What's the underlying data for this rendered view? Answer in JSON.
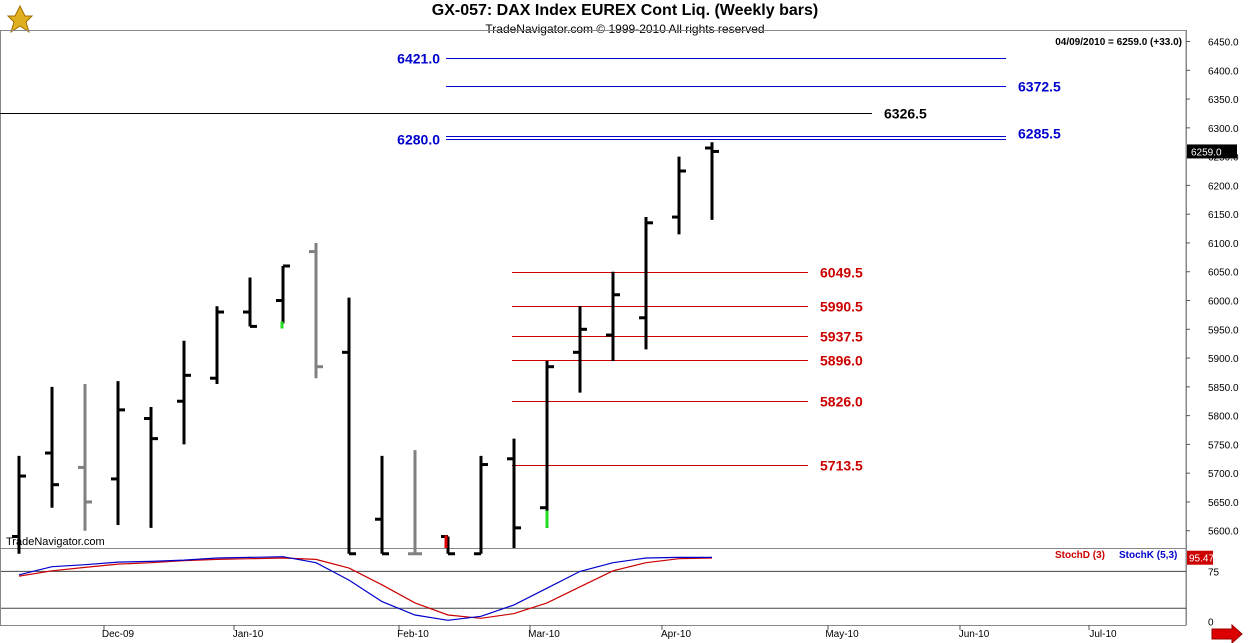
{
  "header": {
    "title": "GX-057:  DAX Index EUREX Cont Liq.  (Weekly bars)",
    "subtitle": "TradeNavigator.com © 1999-2010 All rights reserved",
    "quote": "04/09/2010 = 6259.0 (+33.0)",
    "watermark": "TradeNavigator.com"
  },
  "colors": {
    "up": "#000000",
    "down": "#808080",
    "level_blue": "#0000cc",
    "level_red": "#cc0000",
    "level_black": "#000000",
    "stochD": "#cc0000",
    "stochK": "#0000cc",
    "last_price_bg": "#000000",
    "stoch_value_bg": "#cc0000"
  },
  "chart_data": [
    {
      "type": "ohlc",
      "title": "DAX Index EUREX Cont Liq. (Weekly bars)",
      "ylim": [
        5570,
        6470
      ],
      "y_ticks": [
        5600,
        5650,
        5700,
        5750,
        5800,
        5850,
        5900,
        5950,
        6000,
        6050,
        6100,
        6150,
        6200,
        6250,
        6300,
        6350,
        6400,
        6450
      ],
      "y_tick_labels": [
        "5600.0",
        "5650.0",
        "5700.0",
        "5750.0",
        "5800.0",
        "5850.0",
        "5900.0",
        "5950.0",
        "6000.0",
        "6050.0",
        "6100.0",
        "6150.0",
        "6200.0",
        "6250.0",
        "6300.0",
        "6350.0",
        "6400.0",
        "6450.0"
      ],
      "x_labels": [
        "Dec-09",
        "Jan-10",
        "Feb-10",
        "Mar-10",
        "Apr-10",
        "May-10",
        "Jun-10",
        "Jul-10"
      ],
      "last_price": "6259.0",
      "bars": [
        {
          "o": 5590,
          "h": 5730,
          "l": 5560,
          "c": 5695,
          "color": "up"
        },
        {
          "o": 5735,
          "h": 5850,
          "l": 5640,
          "c": 5680,
          "color": "up"
        },
        {
          "o": 5710,
          "h": 5855,
          "l": 5600,
          "c": 5650,
          "color": "down"
        },
        {
          "o": 5690,
          "h": 5860,
          "l": 5610,
          "c": 5810,
          "color": "up"
        },
        {
          "o": 5795,
          "h": 5815,
          "l": 5605,
          "c": 5760,
          "color": "up"
        },
        {
          "o": 5825,
          "h": 5930,
          "l": 5750,
          "c": 5870,
          "color": "up"
        },
        {
          "o": 5865,
          "h": 5990,
          "l": 5855,
          "c": 5980,
          "color": "up"
        },
        {
          "o": 5980,
          "h": 6040,
          "l": 5955,
          "c": 5955,
          "color": "up"
        },
        {
          "o": 6000,
          "h": 6060,
          "l": 5960,
          "c": 6060,
          "color": "up"
        },
        {
          "o": 6085,
          "h": 6100,
          "l": 5865,
          "c": 5885,
          "color": "down"
        },
        {
          "o": 5910,
          "h": 6005,
          "l": 5560,
          "c": 5560,
          "color": "up"
        },
        {
          "o": 5620,
          "h": 5730,
          "l": 5560,
          "c": 5560,
          "color": "up"
        },
        {
          "o": 5560,
          "h": 5740,
          "l": 5560,
          "c": 5560,
          "color": "down"
        },
        {
          "o": 5590,
          "h": 5590,
          "l": 5560,
          "c": 5560,
          "color": "up"
        },
        {
          "o": 5560,
          "h": 5730,
          "l": 5560,
          "c": 5715,
          "color": "up"
        },
        {
          "o": 5725,
          "h": 5760,
          "l": 5570,
          "c": 5605,
          "color": "up"
        },
        {
          "o": 5640,
          "h": 5895,
          "l": 5605,
          "c": 5885,
          "color": "up"
        },
        {
          "o": 5910,
          "h": 5990,
          "l": 5840,
          "c": 5950,
          "color": "up"
        },
        {
          "o": 5940,
          "h": 6050,
          "l": 5895,
          "c": 6010,
          "color": "up"
        },
        {
          "o": 5970,
          "h": 6145,
          "l": 5915,
          "c": 6135,
          "color": "up"
        },
        {
          "o": 6145,
          "h": 6250,
          "l": 6115,
          "c": 6225,
          "color": "up"
        },
        {
          "o": 6265,
          "h": 6275,
          "l": 6140,
          "c": 6259,
          "color": "up"
        }
      ],
      "levels": [
        {
          "value": 6421.0,
          "label": "6421.0",
          "color": "level_blue",
          "label_side": "left"
        },
        {
          "value": 6372.5,
          "label": "6372.5",
          "color": "level_blue",
          "label_side": "right"
        },
        {
          "value": 6326.5,
          "label": "6326.5",
          "color": "level_black",
          "label_side": "right"
        },
        {
          "value": 6285.5,
          "label": "6285.5",
          "color": "level_blue",
          "label_side": "right"
        },
        {
          "value": 6280.0,
          "label": "6280.0",
          "color": "level_blue",
          "label_side": "left"
        },
        {
          "value": 6049.5,
          "label": "6049.5",
          "color": "level_red",
          "label_side": "right"
        },
        {
          "value": 5990.5,
          "label": "5990.5",
          "color": "level_red",
          "label_side": "right"
        },
        {
          "value": 5937.5,
          "label": "5937.5",
          "color": "level_red",
          "label_side": "right"
        },
        {
          "value": 5896.0,
          "label": "5896.0",
          "color": "level_red",
          "label_side": "right"
        },
        {
          "value": 5826.0,
          "label": "5826.0",
          "color": "level_red",
          "label_side": "right"
        },
        {
          "value": 5713.5,
          "label": "5713.5",
          "color": "level_red",
          "label_side": "right"
        }
      ]
    },
    {
      "type": "line",
      "ylim": [
        -5,
        110
      ],
      "y_ticks": [
        0,
        75
      ],
      "y_tick_labels": [
        "0",
        "75"
      ],
      "reference_lines": [
        20,
        75
      ],
      "current_value": "95.47",
      "series": [
        {
          "name": "StochD (3)",
          "color": "stochD",
          "values": [
            68,
            76,
            81,
            86,
            88,
            91,
            93,
            94,
            95,
            93,
            80,
            55,
            28,
            10,
            5,
            12,
            28,
            52,
            76,
            88,
            94,
            95
          ]
        },
        {
          "name": "StochK (5,3)",
          "color": "stochK",
          "values": [
            70,
            82,
            85,
            89,
            90,
            92,
            95,
            96,
            97,
            88,
            62,
            30,
            10,
            2,
            8,
            25,
            50,
            75,
            88,
            95,
            96,
            96
          ]
        }
      ]
    }
  ]
}
